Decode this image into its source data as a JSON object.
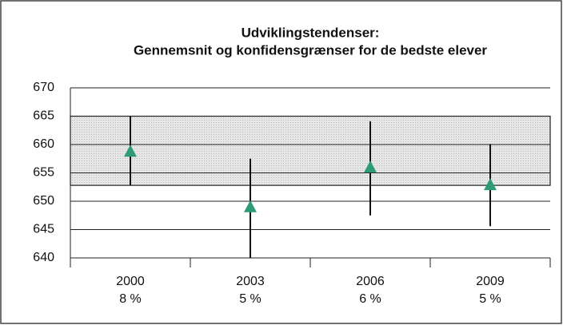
{
  "chart_data": {
    "type": "errorbar",
    "title": [
      "Udviklingstendenser:",
      "Gennemsnit og konfidensgrænser for de bedste elever"
    ],
    "categories": [
      [
        "2000",
        "8 %"
      ],
      [
        "2003",
        "5 %"
      ],
      [
        "2006",
        "6 %"
      ],
      [
        "2009",
        "5 %"
      ]
    ],
    "values": [
      658.7,
      648.9,
      655.9,
      652.8
    ],
    "lower": [
      652.8,
      640,
      647.5,
      645.6
    ],
    "upper": [
      665,
      657.5,
      664.1,
      660.1
    ],
    "band": [
      652.8,
      665
    ],
    "color": "#2e9b78",
    "ylim": [
      640,
      670
    ],
    "yticks": [
      640,
      645,
      650,
      655,
      660,
      665,
      670
    ],
    "grid": true
  }
}
